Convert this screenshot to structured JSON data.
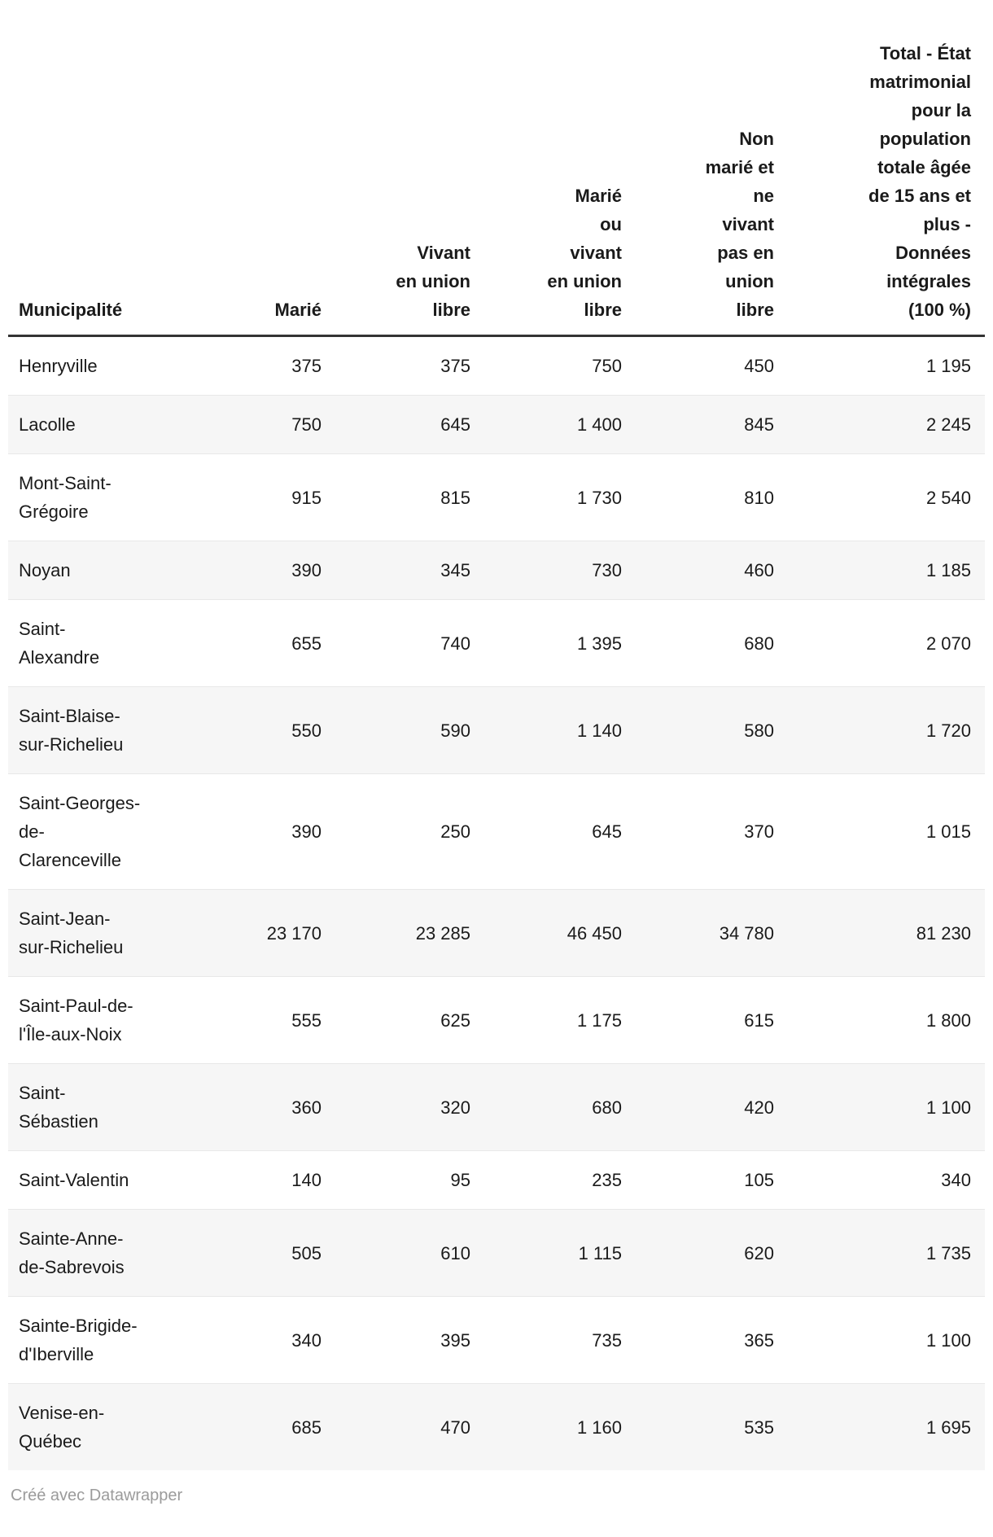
{
  "table": {
    "header": {
      "municipality": "Municipalité",
      "marie": "Marié",
      "union_libre": "Vivant\nen union\nlibre",
      "marie_ou_union": "Marié\nou\nvivant\nen union\nlibre",
      "non_marie": "Non\nmarié et\nne\nvivant\npas en\nunion\nlibre",
      "total": "Total - État\nmatrimonial\npour la\npopulation\ntotale âgée\nde 15 ans et\nplus -\nDonnées\nintégrales\n(100 %)"
    },
    "rows": [
      {
        "name": "Henryville",
        "values": [
          "375",
          "375",
          "750",
          "450",
          "1 195"
        ]
      },
      {
        "name": "Lacolle",
        "values": [
          "750",
          "645",
          "1 400",
          "845",
          "2 245"
        ]
      },
      {
        "name": "Mont-Saint-\nGrégoire",
        "values": [
          "915",
          "815",
          "1 730",
          "810",
          "2 540"
        ]
      },
      {
        "name": "Noyan",
        "values": [
          "390",
          "345",
          "730",
          "460",
          "1 185"
        ]
      },
      {
        "name": "Saint-\nAlexandre",
        "values": [
          "655",
          "740",
          "1 395",
          "680",
          "2 070"
        ]
      },
      {
        "name": "Saint-Blaise-\nsur-Richelieu",
        "values": [
          "550",
          "590",
          "1 140",
          "580",
          "1 720"
        ]
      },
      {
        "name": "Saint-Georges-\nde-\nClarenceville",
        "values": [
          "390",
          "250",
          "645",
          "370",
          "1 015"
        ]
      },
      {
        "name": "Saint-Jean-\nsur-Richelieu",
        "values": [
          "23 170",
          "23 285",
          "46 450",
          "34 780",
          "81 230"
        ]
      },
      {
        "name": "Saint-Paul-de-\nl'Île-aux-Noix",
        "values": [
          "555",
          "625",
          "1 175",
          "615",
          "1 800"
        ]
      },
      {
        "name": "Saint-\nSébastien",
        "values": [
          "360",
          "320",
          "680",
          "420",
          "1 100"
        ]
      },
      {
        "name": "Saint-Valentin",
        "values": [
          "140",
          "95",
          "235",
          "105",
          "340"
        ]
      },
      {
        "name": "Sainte-Anne-\nde-Sabrevois",
        "values": [
          "505",
          "610",
          "1 115",
          "620",
          "1 735"
        ]
      },
      {
        "name": "Sainte-Brigide-\nd'Iberville",
        "values": [
          "340",
          "395",
          "735",
          "365",
          "1 100"
        ]
      },
      {
        "name": "Venise-en-\nQuébec",
        "values": [
          "685",
          "470",
          "1 160",
          "535",
          "1 695"
        ]
      }
    ]
  },
  "footer": {
    "credit": "Créé avec Datawrapper"
  },
  "colors": {
    "text": "#1a1a1a",
    "header_border": "#333333",
    "row_separator": "#e8e8e8",
    "stripe": "#f6f6f6",
    "credit_text": "#9b9b9b"
  },
  "chart_data": {
    "type": "table",
    "columns": [
      "Municipalité",
      "Marié",
      "Vivant en union libre",
      "Marié ou vivant en union libre",
      "Non marié et ne vivant pas en union libre",
      "Total - État matrimonial pour la population totale âgée de 15 ans et plus - Données intégrales (100 %)"
    ],
    "rows": [
      [
        "Henryville",
        375,
        375,
        750,
        450,
        1195
      ],
      [
        "Lacolle",
        750,
        645,
        1400,
        845,
        2245
      ],
      [
        "Mont-Saint-Grégoire",
        915,
        815,
        1730,
        810,
        2540
      ],
      [
        "Noyan",
        390,
        345,
        730,
        460,
        1185
      ],
      [
        "Saint-Alexandre",
        655,
        740,
        1395,
        680,
        2070
      ],
      [
        "Saint-Blaise-sur-Richelieu",
        550,
        590,
        1140,
        580,
        1720
      ],
      [
        "Saint-Georges-de-Clarenceville",
        390,
        250,
        645,
        370,
        1015
      ],
      [
        "Saint-Jean-sur-Richelieu",
        23170,
        23285,
        46450,
        34780,
        81230
      ],
      [
        "Saint-Paul-de-l'Île-aux-Noix",
        555,
        625,
        1175,
        615,
        1800
      ],
      [
        "Saint-Sébastien",
        360,
        320,
        680,
        420,
        1100
      ],
      [
        "Saint-Valentin",
        140,
        95,
        235,
        105,
        340
      ],
      [
        "Sainte-Anne-de-Sabrevois",
        505,
        610,
        1115,
        620,
        1735
      ],
      [
        "Sainte-Brigide-d'Iberville",
        340,
        395,
        735,
        365,
        1100
      ],
      [
        "Venise-en-Québec",
        685,
        470,
        1160,
        535,
        1695
      ]
    ],
    "number_format": "thousands separated by space",
    "striped_rows": "even rows #f6f6f6",
    "legend_position": "none"
  }
}
